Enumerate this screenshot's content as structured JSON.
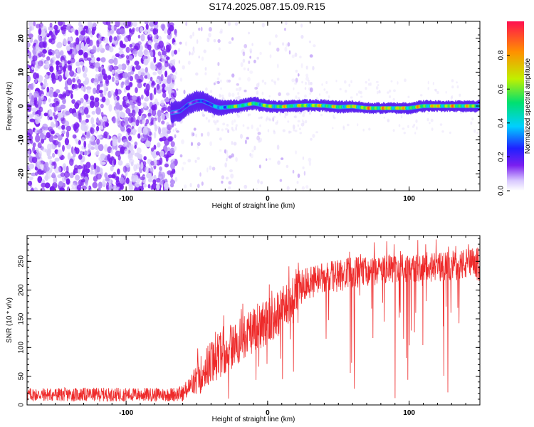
{
  "title": "S174.2025.087.15.09.R15",
  "colors": {
    "snr_line": "#ee2a2a",
    "points": "#7a1ff0"
  },
  "chart_data": [
    {
      "type": "heatmap",
      "xlabel": "Height of straight line (km)",
      "ylabel": "Frequency (Hz)",
      "xlim": [
        -170,
        150
      ],
      "ylim": [
        -25,
        25
      ],
      "xticks": [
        -100,
        0,
        100
      ],
      "yticks": [
        -20,
        -10,
        0,
        10,
        20
      ],
      "colorbar": {
        "label": "Normalized spectral amplitude",
        "range": [
          0,
          1
        ],
        "ticks": [
          "0.0",
          "0.2",
          "0.4",
          "0.6",
          "0.8"
        ],
        "colormap": [
          "#ffffff",
          "#d8c8ff",
          "#7a1ff0",
          "#2020ff",
          "#00d0ff",
          "#00e070",
          "#c0f000",
          "#ff9000",
          "#ff1020"
        ]
      },
      "noise_region_x": [
        -170,
        -67
      ],
      "signal_ridge": {
        "x": [
          -68,
          -62,
          -56,
          -50,
          -46,
          -42,
          -38,
          -34,
          -28,
          -20,
          -10,
          0,
          10,
          20,
          30,
          40,
          50,
          60,
          70,
          80,
          90,
          100,
          110,
          120,
          130,
          140,
          150
        ],
        "y": [
          -2,
          -1.5,
          0.5,
          1.5,
          1.5,
          0.8,
          0,
          -0.5,
          -0.3,
          0,
          0.8,
          0,
          -0.2,
          0.1,
          0.2,
          0.1,
          -0.3,
          -0.1,
          -0.6,
          -0.6,
          -0.6,
          -0.6,
          0,
          0,
          0,
          0,
          0
        ],
        "amplitude": [
          0.3,
          0.35,
          0.4,
          0.35,
          0.45,
          0.5,
          0.55,
          0.6,
          0.75,
          0.85,
          0.8,
          0.85,
          0.9,
          0.85,
          0.9,
          0.9,
          0.85,
          0.9,
          0.95,
          0.95,
          0.95,
          0.9,
          0.9,
          0.95,
          0.95,
          0.9,
          0.9
        ]
      }
    },
    {
      "type": "line",
      "xlabel": "Height of straight line (km)",
      "ylabel": "SNR (10 * v/v)",
      "xlim": [
        -170,
        150
      ],
      "ylim": [
        0,
        295
      ],
      "xticks": [
        -100,
        0,
        100
      ],
      "yticks": [
        0,
        50,
        100,
        150,
        200,
        250
      ],
      "envelope": {
        "x": [
          -170,
          -150,
          -120,
          -90,
          -70,
          -60,
          -55,
          -50,
          -45,
          -40,
          -30,
          -20,
          -10,
          0,
          10,
          20,
          25,
          30,
          40,
          50,
          60,
          80,
          100,
          120,
          140,
          150
        ],
        "mean": [
          18,
          18,
          18,
          18,
          18,
          20,
          30,
          45,
          60,
          75,
          95,
          110,
          130,
          145,
          165,
          195,
          210,
          215,
          220,
          225,
          230,
          235,
          238,
          240,
          245,
          245
        ],
        "spread": [
          12,
          12,
          12,
          12,
          12,
          14,
          20,
          30,
          35,
          40,
          40,
          40,
          40,
          40,
          40,
          35,
          30,
          30,
          28,
          28,
          28,
          25,
          25,
          25,
          28,
          30
        ]
      }
    }
  ]
}
